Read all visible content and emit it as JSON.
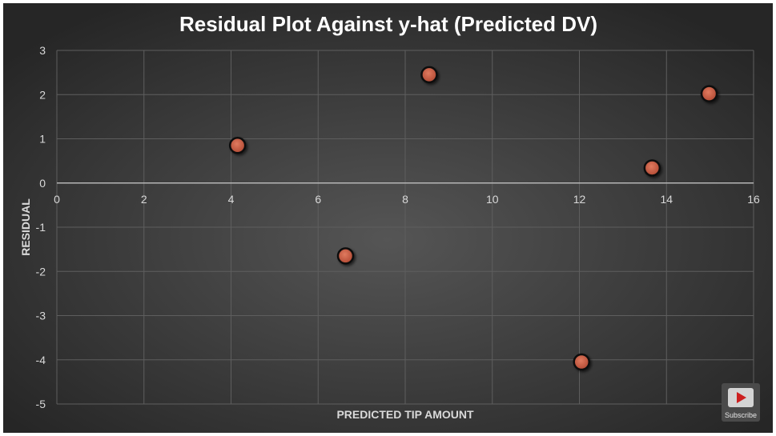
{
  "chart_data": {
    "type": "scatter",
    "title": "Residual Plot Against y-hat (Predicted DV)",
    "xlabel": "PREDICTED TIP AMOUNT",
    "ylabel": "RESIDUAL",
    "xlim": [
      0,
      16
    ],
    "ylim": [
      -5,
      3
    ],
    "xticks": [
      0,
      2,
      4,
      6,
      8,
      10,
      12,
      14,
      16
    ],
    "yticks": [
      3,
      2,
      1,
      0,
      -1,
      -2,
      -3,
      -4,
      -5
    ],
    "grid": true,
    "points": [
      {
        "x": 4.15,
        "y": 0.85
      },
      {
        "x": 6.63,
        "y": -1.65
      },
      {
        "x": 8.55,
        "y": 2.45
      },
      {
        "x": 12.05,
        "y": -4.05
      },
      {
        "x": 13.67,
        "y": 0.34
      },
      {
        "x": 14.98,
        "y": 2.02
      }
    ],
    "marker_color": "#c0533c",
    "background_color": "#3c3c3c"
  },
  "subscribe": {
    "label": "Subscribe"
  }
}
